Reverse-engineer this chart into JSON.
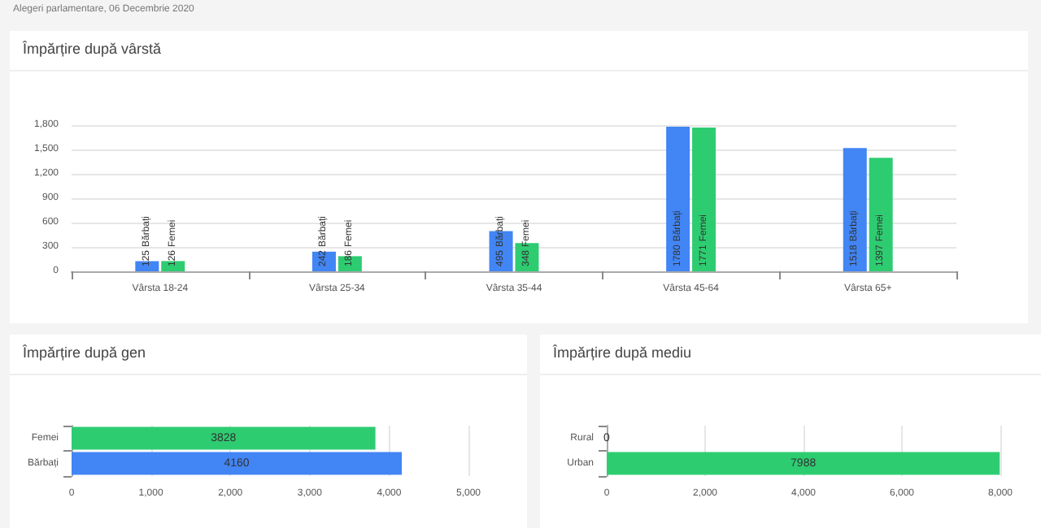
{
  "chart_data": [
    {
      "type": "bar",
      "title": "Împărțire după vârstă",
      "annotations": [
        "Alegeri parlamentare, 06 Decembrie 2020"
      ],
      "categories": [
        "Vârsta 18-24",
        "Vârsta 25-34",
        "Vârsta 35-44",
        "Vârsta 45-64",
        "Vârsta 65+"
      ],
      "series": [
        {
          "name": "Bărbați",
          "color": "#4285f4",
          "values": [
            125,
            242,
            495,
            1780,
            1518
          ]
        },
        {
          "name": "Femei",
          "color": "#2ecc71",
          "values": [
            126,
            186,
            348,
            1771,
            1397
          ]
        }
      ],
      "data_labels": true,
      "ylim": [
        0,
        1800
      ],
      "yticks": [
        0,
        300,
        600,
        900,
        {
          "value": 1200,
          "label": "1,200"
        },
        {
          "value": 1500,
          "label": "1,500"
        },
        {
          "value": 1800,
          "label": "1,800"
        }
      ],
      "grid": "y"
    },
    {
      "type": "bar",
      "title": "Împărțire după gen",
      "orientation": "horizontal",
      "categories": [
        "Femei",
        "Bărbați"
      ],
      "values": [
        3828,
        4160
      ],
      "colors": [
        "#2ecc71",
        "#4285f4"
      ],
      "data_labels": true,
      "xlim": [
        0,
        5000
      ],
      "xticks": [
        0,
        {
          "value": 1000,
          "label": "1,000"
        },
        {
          "value": 2000,
          "label": "2,000"
        },
        {
          "value": 3000,
          "label": "3,000"
        },
        {
          "value": 4000,
          "label": "4,000"
        },
        {
          "value": 5000,
          "label": "5,000"
        }
      ],
      "grid": "x"
    },
    {
      "type": "bar",
      "title": "Împărțire după mediu",
      "orientation": "horizontal",
      "categories": [
        "Rural",
        "Urban"
      ],
      "values": [
        0,
        7988
      ],
      "colors": [
        "#2ecc71",
        "#2ecc71"
      ],
      "data_labels": true,
      "xlim": [
        0,
        8000
      ],
      "xticks": [
        0,
        {
          "value": 2000,
          "label": "2,000"
        },
        {
          "value": 4000,
          "label": "4,000"
        },
        {
          "value": 6000,
          "label": "6,000"
        },
        {
          "value": 8000,
          "label": "8,000"
        }
      ],
      "grid": "x"
    }
  ]
}
